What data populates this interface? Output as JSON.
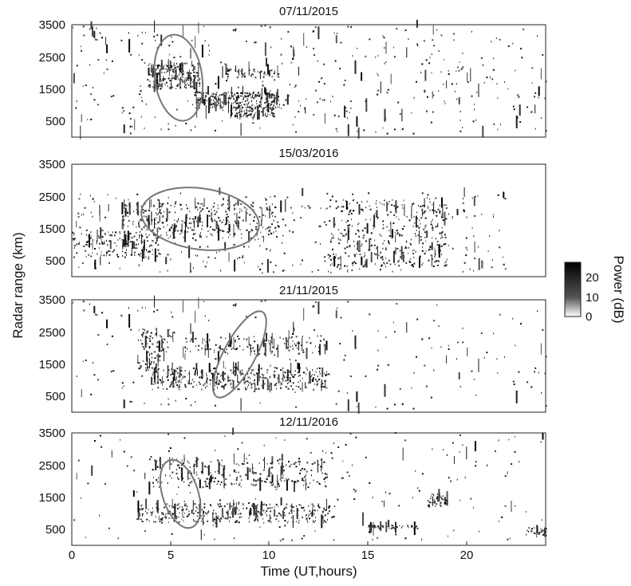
{
  "figure": {
    "ylabel": "Radar range (km)",
    "xlabel": "Time (UT,hours)",
    "colorbar": {
      "label": "Power (dB)",
      "ticks": [
        "20",
        "10",
        "0"
      ],
      "range": [
        0,
        25
      ]
    }
  },
  "chart_data": [
    {
      "type": "heatmap",
      "title": "07/11/2015",
      "xlim": [
        0,
        24
      ],
      "ylim": [
        0,
        3500
      ],
      "yticks": [
        "3500",
        "2500",
        "1500",
        "500"
      ],
      "xticks": [],
      "highlight_ellipse": {
        "center": [
          5.4,
          1850
        ],
        "rx_hours": 1.2,
        "ry_km": 1350,
        "tilt_deg": -8
      }
    },
    {
      "type": "heatmap",
      "title": "15/03/2016",
      "xlim": [
        0,
        24
      ],
      "ylim": [
        0,
        3500
      ],
      "yticks": [
        "3500",
        "2500",
        "1500",
        "500"
      ],
      "xticks": [],
      "highlight_ellipse": {
        "center": [
          6.5,
          1800
        ],
        "rx_hours": 3.0,
        "ry_km": 950,
        "tilt_deg": 8
      }
    },
    {
      "type": "heatmap",
      "title": "21/11/2015",
      "xlim": [
        0,
        24
      ],
      "ylim": [
        0,
        3500
      ],
      "yticks": [
        "3500",
        "2500",
        "1500",
        "500"
      ],
      "xticks": [],
      "highlight_ellipse": {
        "center": [
          8.5,
          1800
        ],
        "rx_hours": 0.8,
        "ry_km": 1500,
        "tilt_deg": 28
      }
    },
    {
      "type": "heatmap",
      "title": "12/11/2016",
      "xlim": [
        0,
        24
      ],
      "ylim": [
        0,
        3500
      ],
      "yticks": [
        "3500",
        "2500",
        "1500",
        "500"
      ],
      "xticks": [
        "0",
        "5",
        "10",
        "15",
        "20"
      ],
      "highlight_ellipse": {
        "center": [
          5.5,
          1600
        ],
        "rx_hours": 0.9,
        "ry_km": 1100,
        "tilt_deg": -18
      }
    }
  ]
}
